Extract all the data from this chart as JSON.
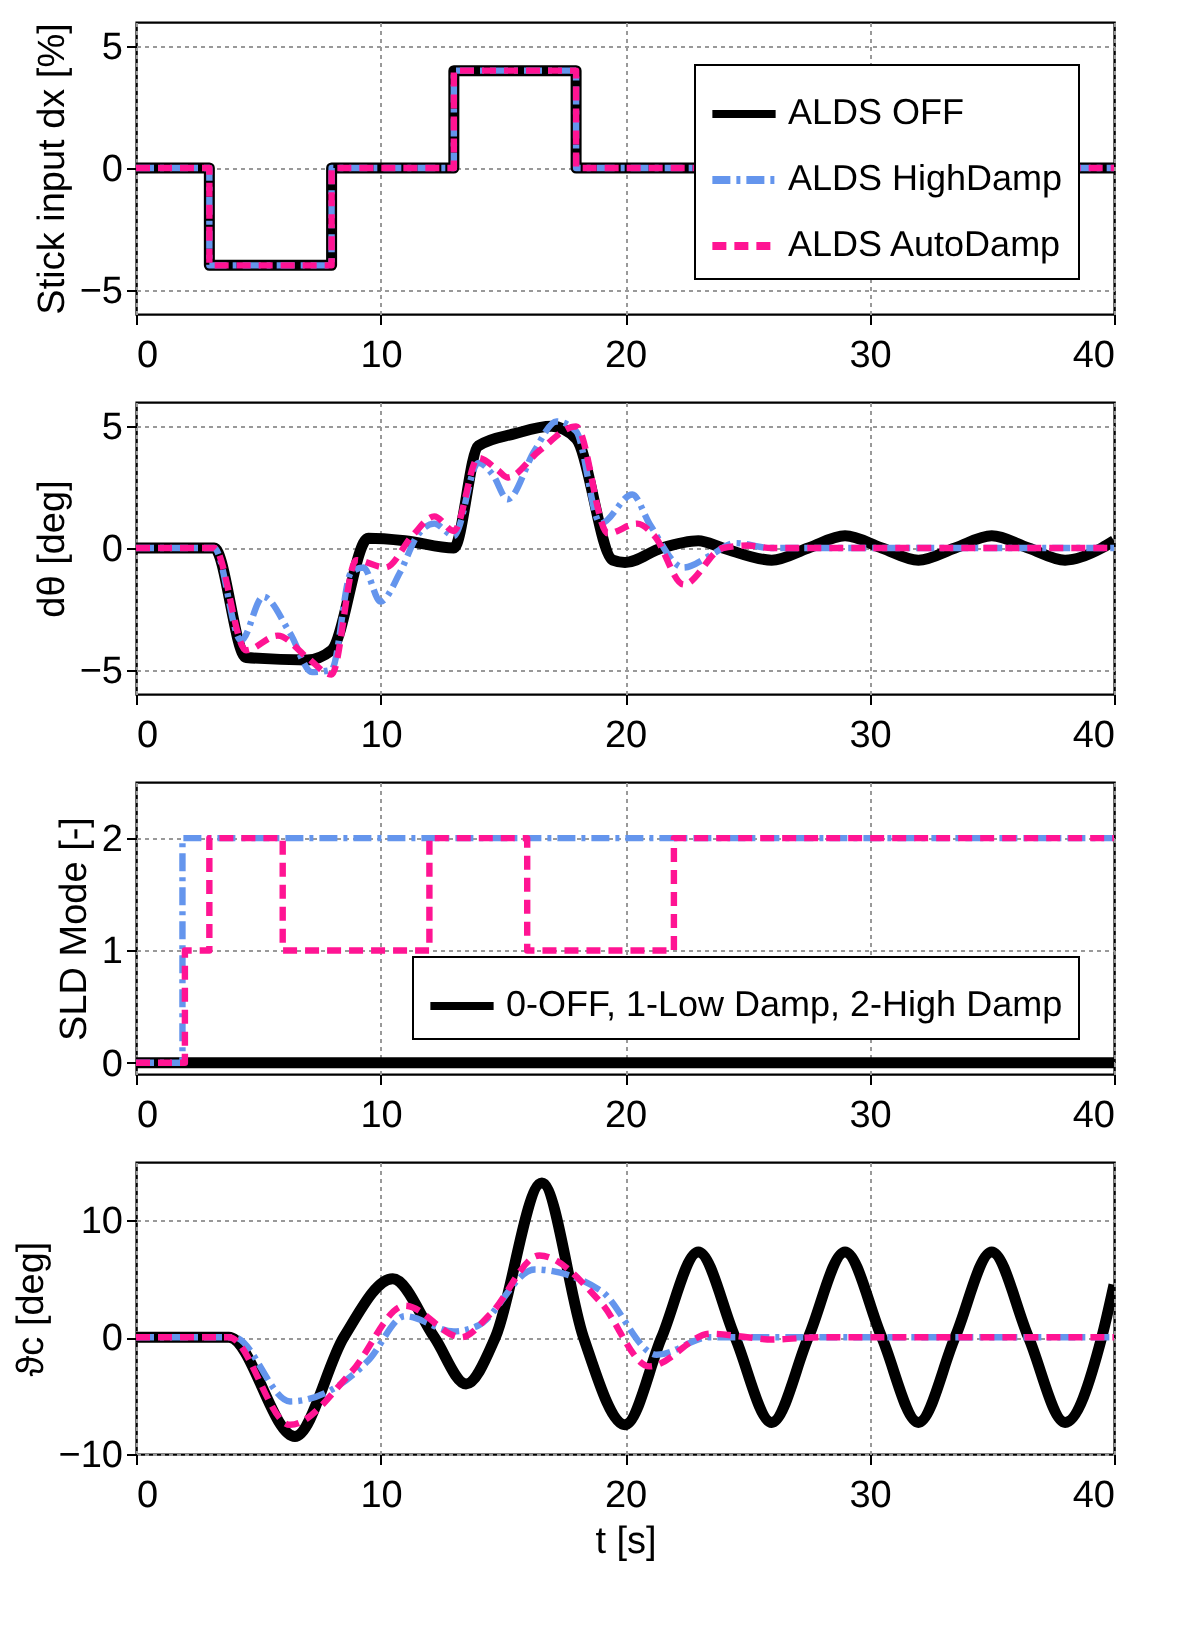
{
  "chart_data": [
    {
      "type": "step",
      "ylabel": "Stick input dx [%]",
      "xlim": [
        0,
        40
      ],
      "xticks": [
        0,
        10,
        20,
        30,
        40
      ],
      "ylim": [
        -6,
        6
      ],
      "yticks": [
        -5,
        0,
        5
      ],
      "grid": true,
      "legend": "bottom right",
      "series": [
        {
          "name": "ALDS OFF",
          "color": "#000000",
          "line_style": "solid",
          "x": [
            0,
            3,
            8,
            13,
            18,
            40
          ],
          "values": [
            0,
            -4,
            0,
            4,
            0,
            0
          ]
        },
        {
          "name": "ALDS HighDamp",
          "color": "#6495ed",
          "line_style": "dashdot",
          "x": [
            0,
            3,
            8,
            13,
            18,
            40
          ],
          "values": [
            0,
            -4,
            0,
            4,
            0,
            0
          ]
        },
        {
          "name": "ALDS AutoDamp",
          "color": "#ff1493",
          "line_style": "dashed",
          "x": [
            0,
            3,
            8,
            13,
            18,
            40
          ],
          "values": [
            0,
            -4,
            0,
            4,
            0,
            0
          ]
        }
      ]
    },
    {
      "type": "line",
      "ylabel": "dθ [deg]",
      "xlim": [
        0,
        40
      ],
      "xticks": [
        0,
        10,
        20,
        30,
        40
      ],
      "ylim": [
        -6,
        6
      ],
      "yticks": [
        -5,
        0,
        5
      ],
      "grid": true,
      "series": [
        {
          "color": "#000000",
          "line_style": "solid",
          "x": [
            0,
            3.2,
            4.5,
            7,
            8,
            9.5,
            11,
            13,
            14,
            15.5,
            17,
            18,
            19.5,
            20,
            21.5,
            23,
            24,
            26,
            27.5,
            29,
            30.5,
            32,
            33.5,
            35,
            36.5,
            38,
            39.5,
            40
          ],
          "values": [
            0,
            0,
            -4.5,
            -4.6,
            -4.2,
            0.4,
            0.3,
            0,
            4.2,
            4.7,
            5,
            4.5,
            -0.5,
            -0.6,
            0,
            0.3,
            0,
            -0.5,
            0,
            0.5,
            0,
            -0.5,
            0,
            0.5,
            0,
            -0.5,
            0,
            0.3
          ]
        },
        {
          "color": "#6495ed",
          "line_style": "dashdot",
          "x": [
            0,
            3.2,
            4.3,
            5.2,
            6.3,
            7.2,
            8,
            8.8,
            9.3,
            10,
            10.8,
            11.5,
            12.2,
            13,
            14,
            14.6,
            15.2,
            16.3,
            17.2,
            18,
            19,
            20.3,
            21,
            22.4,
            23.5,
            24.5,
            26,
            40
          ],
          "values": [
            0,
            0,
            -3.8,
            -2,
            -3.5,
            -5.1,
            -5,
            -1,
            -0.8,
            -2.2,
            -1,
            0.5,
            1,
            0.5,
            3.5,
            3,
            2,
            4,
            5.2,
            4.8,
            1,
            2.2,
            1,
            -0.8,
            -0.3,
            0.2,
            0,
            0
          ]
        },
        {
          "color": "#ff1493",
          "line_style": "dashed",
          "x": [
            0,
            3.2,
            4.5,
            5.8,
            7,
            8,
            9,
            10.2,
            11.3,
            12.2,
            13,
            14,
            14.8,
            15.2,
            16.5,
            18,
            19.3,
            20.5,
            21.2,
            22.4,
            24,
            25,
            26,
            40
          ],
          "values": [
            0,
            0,
            -4.2,
            -3.6,
            -4.5,
            -5.2,
            -0.5,
            -0.8,
            0.5,
            1.3,
            0.7,
            3.7,
            3.2,
            2.9,
            4,
            5,
            0.6,
            1,
            0.5,
            -1.5,
            0,
            0.1,
            0,
            0
          ]
        }
      ]
    },
    {
      "type": "step",
      "ylabel": "SLD Mode [-]",
      "xlim": [
        0,
        40
      ],
      "xticks": [
        0,
        10,
        20,
        30,
        40
      ],
      "ylim": [
        -0.1,
        2.5
      ],
      "yticks": [
        0,
        1,
        2
      ],
      "grid": true,
      "legend": "bottom right",
      "series": [
        {
          "name": "0-OFF, 1-Low Damp, 2-High Damp",
          "color": "#000000",
          "line_style": "solid",
          "x": [
            0,
            40
          ],
          "values": [
            0,
            0
          ]
        },
        {
          "color": "#6495ed",
          "line_style": "dashdot",
          "x": [
            0,
            1.9,
            40
          ],
          "values": [
            0,
            2,
            2
          ]
        },
        {
          "color": "#ff1493",
          "line_style": "dashed",
          "x": [
            0,
            2,
            3,
            6,
            12,
            16,
            22,
            40
          ],
          "values": [
            0,
            1,
            2,
            1,
            2,
            1,
            2,
            2
          ]
        }
      ]
    },
    {
      "type": "line",
      "ylabel": "ϑc [deg]",
      "xlabel": "t [s]",
      "xlim": [
        0,
        40
      ],
      "xticks": [
        0,
        10,
        20,
        30,
        40
      ],
      "ylim": [
        -10,
        15
      ],
      "yticks": [
        -10,
        0,
        10
      ],
      "grid": true,
      "series": [
        {
          "color": "#000000",
          "line_style": "solid",
          "x": [
            0,
            3.8,
            6.5,
            8.5,
            10.5,
            12.2,
            13.5,
            14.7,
            16.6,
            18.3,
            20,
            21.5,
            23,
            24.5,
            26,
            27.5,
            29,
            30.5,
            32,
            33.5,
            35,
            36.5,
            38,
            39.5,
            40
          ],
          "values": [
            0,
            0,
            -8.5,
            0,
            5,
            0,
            -4,
            0,
            13.2,
            0,
            -7.5,
            0,
            7.3,
            0,
            -7.3,
            0,
            7.3,
            0,
            -7.3,
            0,
            7.3,
            0,
            -7.3,
            0,
            4.5
          ]
        },
        {
          "color": "#6495ed",
          "line_style": "dashdot",
          "x": [
            0,
            4,
            6.3,
            8,
            9.5,
            11,
            13,
            14,
            16.3,
            19,
            21.3,
            23.5,
            40
          ],
          "values": [
            0,
            0,
            -5.5,
            -4.5,
            -2,
            1.8,
            0.5,
            1,
            5.8,
            4,
            -1.5,
            0,
            0
          ]
        },
        {
          "color": "#ff1493",
          "line_style": "dashed",
          "x": [
            0,
            3.8,
            6.3,
            8.8,
            11,
            13.3,
            14.5,
            16.5,
            19,
            21,
            23.5,
            25,
            26,
            28,
            40
          ],
          "values": [
            0,
            0,
            -7.5,
            -3,
            2.7,
            0,
            2,
            7,
            3,
            -2.5,
            0.3,
            0,
            -0.2,
            0,
            0
          ]
        }
      ]
    }
  ]
}
